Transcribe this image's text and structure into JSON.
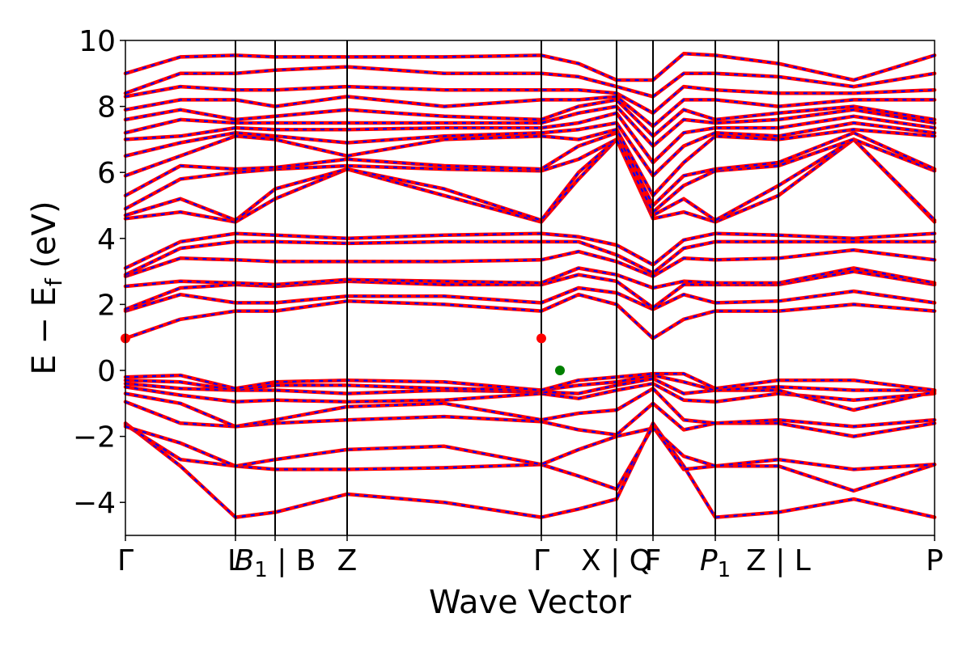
{
  "chart_data": {
    "type": "line",
    "xlabel": "Wave Vector",
    "ylabel_main": "E − E",
    "ylabel_sub": "f",
    "ylabel_unit": " (eV)",
    "xlim": [
      0,
      1
    ],
    "ylim": [
      -5,
      10
    ],
    "yticks": [
      -4,
      -2,
      0,
      2,
      4,
      6,
      8,
      10
    ],
    "kpoints": [
      {
        "x": 0.0,
        "label": "Γ"
      },
      {
        "x": 0.136,
        "label": "L"
      },
      {
        "x": 0.185,
        "label": "B",
        "subscript": "1",
        "suffix": " | B",
        "italic": true
      },
      {
        "x": 0.274,
        "label": "Z"
      },
      {
        "x": 0.514,
        "label": "Γ"
      },
      {
        "x": 0.607,
        "label": "X | Q"
      },
      {
        "x": 0.652,
        "label": "F"
      },
      {
        "x": 0.729,
        "label": "P",
        "subscript": "1",
        "italic": true
      },
      {
        "x": 0.807,
        "label": "Z | L"
      },
      {
        "x": 1.0,
        "label": "P"
      }
    ],
    "series_style": {
      "line_color": "#ff0000",
      "dash_color": "#0000ff"
    },
    "markers": [
      {
        "name": "CBM",
        "x": 0.0,
        "y": 0.97,
        "color": "#ff0000"
      },
      {
        "name": "CBM",
        "x": 0.514,
        "y": 0.97,
        "color": "#ff0000"
      },
      {
        "name": "VBM",
        "x": 0.537,
        "y": 0.0,
        "color": "#008000"
      }
    ],
    "series": [
      {
        "y": [
          -1.6,
          -2.9,
          -4.45,
          -4.3,
          -3.75,
          -4.0,
          -4.45,
          -4.2,
          -3.9,
          -1.6,
          -2.9,
          -4.45,
          -4.3,
          -3.9,
          -4.45,
          -3.6
        ]
      },
      {
        "y": [
          -1.65,
          -2.7,
          -2.9,
          -3.0,
          -3.0,
          -2.95,
          -2.85,
          -3.2,
          -3.6,
          -1.7,
          -3.0,
          -2.9,
          -2.9,
          -3.65,
          -2.85,
          -3.4
        ]
      },
      {
        "y": [
          -1.7,
          -2.2,
          -2.9,
          -2.7,
          -2.4,
          -2.3,
          -2.85,
          -2.4,
          -2.0,
          -1.75,
          -2.6,
          -2.9,
          -2.7,
          -3.0,
          -2.85,
          -2.3
        ]
      },
      {
        "y": [
          -0.95,
          -1.6,
          -1.7,
          -1.6,
          -1.5,
          -1.4,
          -1.55,
          -1.8,
          -1.95,
          -1.0,
          -1.8,
          -1.6,
          -1.6,
          -2.0,
          -1.6,
          -2.0
        ]
      },
      {
        "y": [
          -0.7,
          -1.0,
          -1.7,
          -1.5,
          -1.1,
          -1.0,
          -1.5,
          -1.3,
          -1.2,
          -0.55,
          -1.5,
          -1.6,
          -1.5,
          -1.7,
          -1.5,
          -1.5
        ]
      },
      {
        "y": [
          -0.5,
          -0.75,
          -0.95,
          -0.9,
          -0.95,
          -0.9,
          -0.7,
          -0.85,
          -0.6,
          -0.4,
          -0.9,
          -0.95,
          -0.7,
          -0.9,
          -0.7,
          -1.2
        ]
      },
      {
        "y": [
          -0.4,
          -0.55,
          -0.6,
          -0.6,
          -0.7,
          -0.6,
          -0.65,
          -0.7,
          -0.45,
          -0.25,
          -0.7,
          -0.6,
          -0.6,
          -1.2,
          -0.65,
          -0.8
        ]
      },
      {
        "y": [
          -0.3,
          -0.35,
          -0.6,
          -0.45,
          -0.45,
          -0.55,
          -0.6,
          -0.45,
          -0.35,
          -0.15,
          -0.35,
          -0.6,
          -0.5,
          -0.6,
          -0.6,
          -0.5
        ]
      },
      {
        "y": [
          -0.2,
          -0.15,
          -0.55,
          -0.35,
          -0.3,
          -0.35,
          -0.6,
          -0.3,
          -0.2,
          -0.1,
          -0.1,
          -0.55,
          -0.3,
          -0.3,
          -0.6,
          -0.25
        ]
      },
      {
        "y": [
          0.97,
          1.55,
          1.8,
          1.8,
          2.1,
          2.0,
          1.8,
          2.3,
          2.0,
          0.97,
          1.55,
          1.8,
          1.8,
          2.0,
          1.8,
          2.1
        ]
      },
      {
        "y": [
          1.8,
          2.3,
          2.05,
          2.05,
          2.25,
          2.25,
          2.05,
          2.5,
          2.35,
          1.85,
          2.3,
          2.05,
          2.1,
          2.4,
          2.05,
          2.3
        ]
      },
      {
        "y": [
          1.85,
          2.5,
          2.6,
          2.55,
          2.7,
          2.6,
          2.6,
          2.9,
          2.7,
          1.9,
          2.6,
          2.6,
          2.6,
          3.0,
          2.6,
          2.6
        ]
      },
      {
        "y": [
          2.55,
          2.7,
          2.65,
          2.6,
          2.75,
          2.7,
          2.65,
          3.1,
          2.9,
          2.5,
          2.7,
          2.65,
          2.65,
          3.1,
          2.65,
          3.2
        ]
      },
      {
        "y": [
          2.85,
          3.4,
          3.35,
          3.3,
          3.3,
          3.3,
          3.35,
          3.6,
          3.3,
          2.85,
          3.4,
          3.35,
          3.4,
          3.65,
          3.35,
          3.75
        ]
      },
      {
        "y": [
          2.9,
          3.7,
          3.9,
          3.9,
          3.85,
          3.9,
          3.9,
          3.9,
          3.5,
          2.95,
          3.7,
          3.9,
          3.9,
          3.9,
          3.9,
          3.8
        ]
      },
      {
        "y": [
          3.1,
          3.9,
          4.15,
          4.1,
          4.0,
          4.1,
          4.15,
          4.05,
          3.8,
          3.2,
          3.95,
          4.15,
          4.1,
          4.0,
          4.15,
          3.8
        ]
      },
      {
        "y": [
          4.6,
          4.8,
          4.5,
          5.2,
          6.1,
          5.3,
          4.5,
          5.8,
          7.0,
          4.6,
          4.8,
          4.5,
          5.3,
          7.0,
          4.5,
          5.5
        ]
      },
      {
        "y": [
          4.7,
          5.2,
          4.55,
          5.5,
          6.1,
          5.5,
          4.55,
          6.0,
          7.0,
          4.7,
          5.2,
          4.55,
          5.6,
          7.0,
          4.55,
          5.6
        ]
      },
      {
        "y": [
          4.9,
          5.8,
          6.0,
          6.1,
          6.2,
          6.1,
          6.05,
          6.4,
          7.0,
          4.8,
          5.6,
          6.05,
          6.2,
          7.0,
          6.05,
          5.8
        ]
      },
      {
        "y": [
          5.3,
          6.2,
          6.1,
          6.15,
          6.4,
          6.2,
          6.1,
          6.8,
          7.2,
          5.0,
          5.9,
          6.1,
          6.3,
          7.2,
          6.1,
          6.0
        ]
      },
      {
        "y": [
          5.9,
          6.5,
          7.1,
          7.0,
          6.5,
          7.0,
          7.1,
          7.0,
          7.3,
          5.3,
          6.3,
          7.1,
          7.0,
          7.3,
          7.1,
          6.3
        ]
      },
      {
        "y": [
          6.5,
          6.9,
          7.2,
          7.1,
          6.9,
          7.1,
          7.2,
          7.3,
          7.5,
          5.9,
          6.8,
          7.2,
          7.1,
          7.5,
          7.2,
          6.7
        ]
      },
      {
        "y": [
          7.0,
          7.1,
          7.35,
          7.3,
          7.3,
          7.35,
          7.35,
          7.5,
          7.8,
          6.3,
          7.2,
          7.35,
          7.35,
          7.7,
          7.35,
          7.1
        ]
      },
      {
        "y": [
          7.2,
          7.6,
          7.5,
          7.5,
          7.5,
          7.5,
          7.5,
          7.8,
          8.0,
          6.8,
          7.6,
          7.5,
          7.6,
          7.9,
          7.5,
          7.5
        ]
      },
      {
        "y": [
          7.6,
          7.9,
          7.6,
          7.7,
          7.9,
          7.7,
          7.6,
          8.0,
          8.2,
          7.1,
          7.9,
          7.6,
          7.8,
          8.0,
          7.6,
          7.8
        ]
      },
      {
        "y": [
          7.9,
          8.2,
          8.2,
          8.0,
          8.3,
          8.0,
          8.2,
          8.2,
          8.3,
          7.4,
          8.2,
          8.2,
          8.0,
          8.2,
          8.2,
          8.1
        ]
      },
      {
        "y": [
          8.3,
          8.6,
          8.5,
          8.5,
          8.6,
          8.5,
          8.5,
          8.5,
          8.4,
          7.8,
          8.6,
          8.5,
          8.4,
          8.4,
          8.5,
          8.5
        ]
      },
      {
        "y": [
          8.4,
          9.0,
          9.0,
          9.1,
          9.2,
          9.0,
          9.0,
          8.9,
          8.6,
          8.3,
          9.0,
          9.0,
          8.9,
          8.6,
          9.0,
          8.9
        ]
      },
      {
        "y": [
          9.0,
          9.5,
          9.55,
          9.5,
          9.5,
          9.5,
          9.55,
          9.3,
          8.8,
          8.8,
          9.6,
          9.55,
          9.3,
          8.8,
          9.55,
          9.5
        ]
      }
    ]
  }
}
